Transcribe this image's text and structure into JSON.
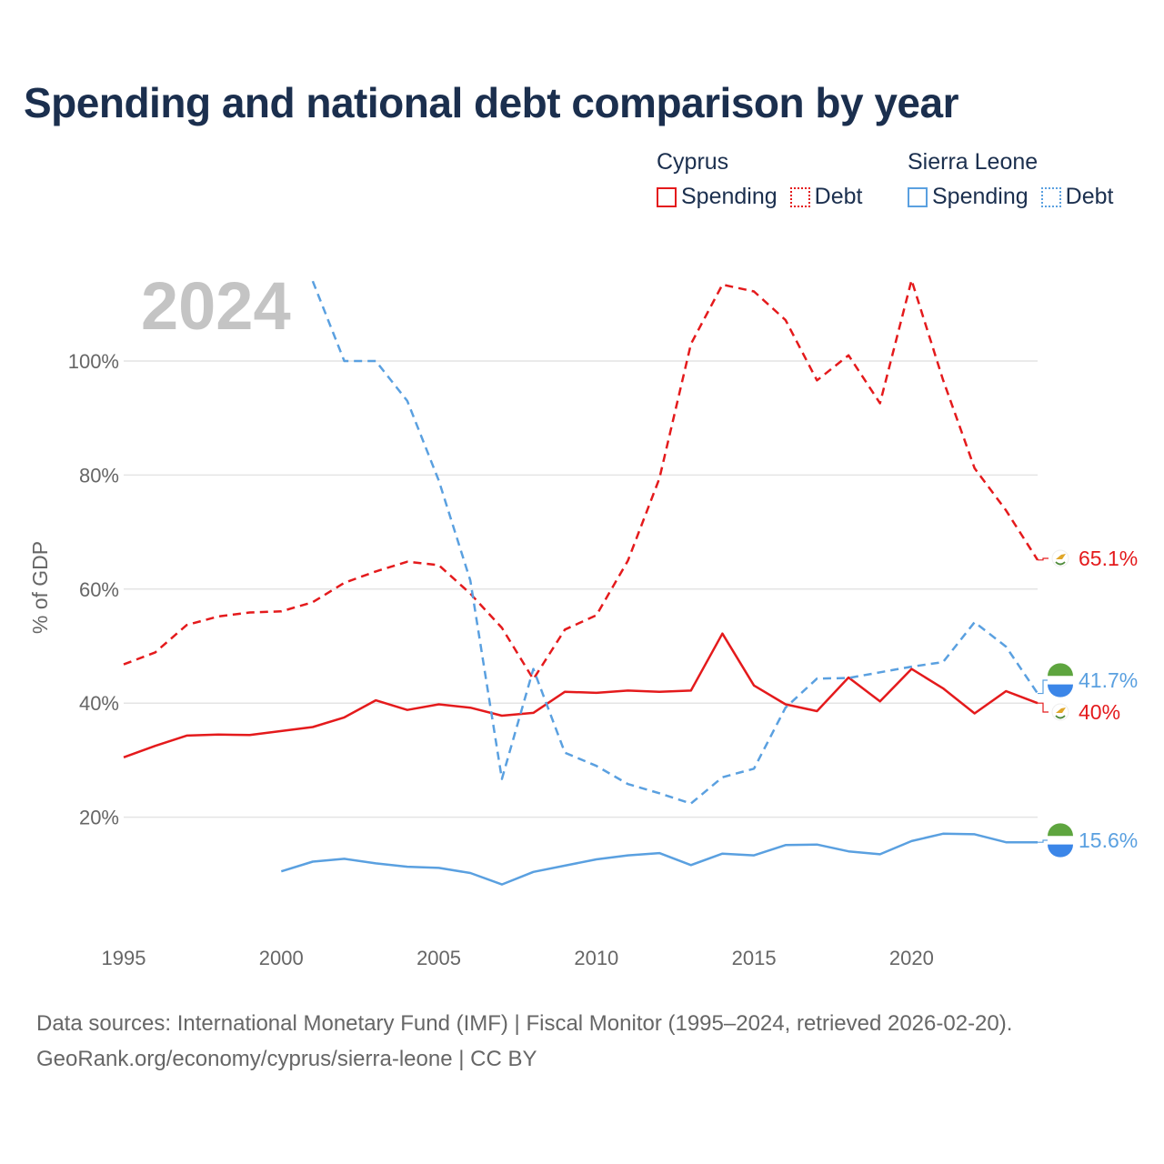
{
  "title": "Spending and national debt comparison by year",
  "legend": {
    "groups": [
      {
        "name": "Cyprus",
        "items": [
          {
            "label": "Spending",
            "style": "solid",
            "color": "#e41a1c"
          },
          {
            "label": "Debt",
            "style": "dotted",
            "color": "#e41a1c"
          }
        ]
      },
      {
        "name": "Sierra Leone",
        "items": [
          {
            "label": "Spending",
            "style": "solid",
            "color": "#5aa0e0"
          },
          {
            "label": "Debt",
            "style": "dotted",
            "color": "#5aa0e0"
          }
        ]
      }
    ]
  },
  "chart_data": {
    "type": "line",
    "title": "Spending and national debt comparison by year",
    "year_watermark": "2024",
    "ylabel": "% of GDP",
    "xlabel": "",
    "xlim": [
      1995,
      2024
    ],
    "ylim": [
      0,
      120
    ],
    "x_ticks": [
      1995,
      2000,
      2005,
      2010,
      2015,
      2020
    ],
    "y_ticks": [
      20,
      40,
      60,
      80,
      100
    ],
    "y_tick_labels": [
      "20%",
      "40%",
      "60%",
      "80%",
      "100%"
    ],
    "grid": true,
    "series": [
      {
        "name": "Cyprus Spending",
        "country": "Cyprus",
        "metric": "Spending",
        "color": "#e41a1c",
        "dash": "solid",
        "x": [
          1995,
          1996,
          1997,
          1998,
          1999,
          2000,
          2001,
          2002,
          2003,
          2004,
          2005,
          2006,
          2007,
          2008,
          2009,
          2010,
          2011,
          2012,
          2013,
          2014,
          2015,
          2016,
          2017,
          2018,
          2019,
          2020,
          2021,
          2022,
          2023,
          2024
        ],
        "values": [
          30.5,
          32.5,
          34.3,
          34.5,
          34.4,
          35.1,
          35.8,
          37.5,
          40.5,
          38.8,
          39.8,
          39.2,
          37.8,
          38.3,
          42.0,
          41.8,
          42.2,
          42.0,
          42.2,
          52.2,
          43.1,
          39.8,
          38.6,
          44.5,
          40.3,
          46.0,
          42.6,
          38.2,
          42.1,
          40.0
        ],
        "end_label": "40%"
      },
      {
        "name": "Cyprus Debt",
        "country": "Cyprus",
        "metric": "Debt",
        "color": "#e41a1c",
        "dash": "dashed",
        "x": [
          1995,
          1996,
          1997,
          1998,
          1999,
          2000,
          2001,
          2002,
          2003,
          2004,
          2005,
          2006,
          2007,
          2008,
          2009,
          2010,
          2011,
          2012,
          2013,
          2014,
          2015,
          2016,
          2017,
          2018,
          2019,
          2020,
          2021,
          2022,
          2023,
          2024
        ],
        "values": [
          46.8,
          48.9,
          53.7,
          55.2,
          55.9,
          56.1,
          57.7,
          61.1,
          63.1,
          64.8,
          64.2,
          59.2,
          53.2,
          44.2,
          52.9,
          55.4,
          65.0,
          79.4,
          103.0,
          113.4,
          112.2,
          107.2,
          96.6,
          101.0,
          92.6,
          114.2,
          96.7,
          81.2,
          73.8,
          65.1
        ],
        "end_label": "65.1%"
      },
      {
        "name": "Sierra Leone Spending",
        "country": "Sierra Leone",
        "metric": "Spending",
        "color": "#5aa0e0",
        "dash": "solid",
        "x": [
          2000,
          2001,
          2002,
          2003,
          2004,
          2005,
          2006,
          2007,
          2008,
          2009,
          2010,
          2011,
          2012,
          2013,
          2014,
          2015,
          2016,
          2017,
          2018,
          2019,
          2020,
          2021,
          2022,
          2023,
          2024
        ],
        "values": [
          10.5,
          12.2,
          12.7,
          11.9,
          11.3,
          11.1,
          10.2,
          8.2,
          10.4,
          11.5,
          12.6,
          13.3,
          13.7,
          11.6,
          13.6,
          13.3,
          15.1,
          15.2,
          14.0,
          13.5,
          15.8,
          17.1,
          17.0,
          15.6,
          15.6
        ],
        "end_label": "15.6%"
      },
      {
        "name": "Sierra Leone Debt",
        "country": "Sierra Leone",
        "metric": "Debt",
        "color": "#5aa0e0",
        "dash": "dashed",
        "x": [
          2001,
          2002,
          2003,
          2004,
          2005,
          2006,
          2007,
          2008,
          2009,
          2010,
          2011,
          2012,
          2013,
          2014,
          2015,
          2016,
          2017,
          2018,
          2019,
          2020,
          2021,
          2022,
          2023,
          2024
        ],
        "values": [
          114.0,
          100.0,
          100.0,
          93.0,
          79.0,
          61.5,
          26.7,
          46.0,
          31.3,
          29.0,
          25.8,
          24.2,
          22.4,
          27.0,
          28.5,
          39.2,
          44.3,
          44.4,
          45.4,
          46.4,
          47.2,
          54.2,
          49.9,
          41.7
        ],
        "end_label": "41.7%"
      }
    ]
  },
  "source": {
    "line1": "Data sources: International Monetary Fund (IMF) | Fiscal Monitor (1995–2024, retrieved 2026-02-20).",
    "line2": "GeoRank.org/economy/cyprus/sierra-leone | CC BY"
  }
}
